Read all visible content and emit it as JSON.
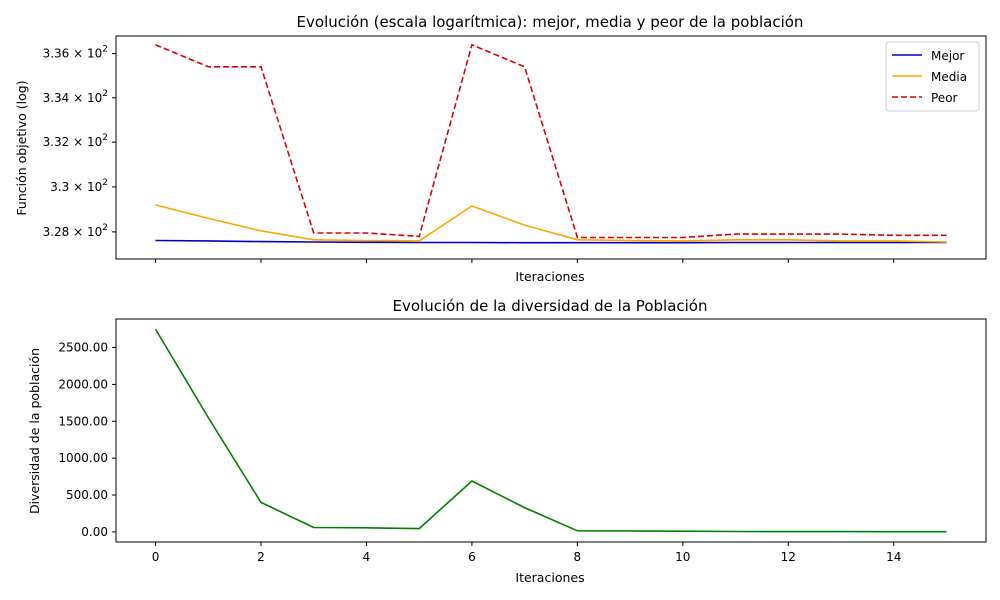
{
  "chart_data": [
    {
      "type": "line",
      "title": "Evolución (escala logarítmica): mejor, media y peor de la población",
      "xlabel": "Iteraciones",
      "ylabel": "Función objetivo (log)",
      "yscale": "log",
      "xlim": [
        -0.75,
        15.75
      ],
      "ylim": [
        326.8,
        336.8
      ],
      "x": [
        0,
        1,
        2,
        3,
        4,
        5,
        6,
        7,
        8,
        9,
        10,
        11,
        12,
        13,
        14,
        15
      ],
      "x_ticks": [
        0,
        2,
        4,
        6,
        8,
        10,
        12,
        14
      ],
      "y_ticks": [
        {
          "value": 328,
          "mantissa": "3.28",
          "base": "10",
          "exp": "2"
        },
        {
          "value": 330,
          "mantissa": "3.3",
          "base": "10",
          "exp": "2"
        },
        {
          "value": 332,
          "mantissa": "3.32",
          "base": "10",
          "exp": "2"
        },
        {
          "value": 334,
          "mantissa": "3.34",
          "base": "10",
          "exp": "2"
        },
        {
          "value": 336,
          "mantissa": "3.36",
          "base": "10",
          "exp": "2"
        }
      ],
      "times_symbol": "×",
      "grid": false,
      "legend": "top-right",
      "series": [
        {
          "name": "Mejor",
          "color": "#0000cc",
          "dash": "solid",
          "values": [
            327.62,
            327.6,
            327.57,
            327.55,
            327.54,
            327.53,
            327.53,
            327.52,
            327.52,
            327.52,
            327.52,
            327.53,
            327.53,
            327.53,
            327.53,
            327.53
          ]
        },
        {
          "name": "Media",
          "color": "#ffa500",
          "dash": "solid",
          "values": [
            329.2,
            328.6,
            328.05,
            327.65,
            327.62,
            327.6,
            329.15,
            328.3,
            327.65,
            327.62,
            327.6,
            327.65,
            327.65,
            327.6,
            327.6,
            327.55
          ]
        },
        {
          "name": "Peor",
          "color": "#dd0000",
          "dash": "dashed",
          "values": [
            336.4,
            335.4,
            335.4,
            327.95,
            327.95,
            327.8,
            336.4,
            335.4,
            327.75,
            327.75,
            327.75,
            327.9,
            327.9,
            327.9,
            327.85,
            327.85
          ]
        }
      ]
    },
    {
      "type": "line",
      "title": "Evolución de la diversidad de la Población",
      "xlabel": "Iteraciones",
      "ylabel": "Diversidad de la población",
      "xlim": [
        -0.75,
        15.75
      ],
      "ylim": [
        -137,
        2887
      ],
      "x": [
        0,
        1,
        2,
        3,
        4,
        5,
        6,
        7,
        8,
        9,
        10,
        11,
        12,
        13,
        14,
        15
      ],
      "x_ticks": [
        0,
        2,
        4,
        6,
        8,
        10,
        12,
        14
      ],
      "y_ticks": [
        0,
        500,
        1000,
        1500,
        2000,
        2500
      ],
      "y_tick_labels": [
        "0.00",
        "500.00",
        "1000.00",
        "1500.00",
        "2000.00",
        "2500.00"
      ],
      "grid": false,
      "series": [
        {
          "color": "#008000",
          "dash": "solid",
          "values": [
            2750,
            1550,
            400,
            60,
            55,
            45,
            690,
            330,
            15,
            12,
            10,
            5,
            4,
            4,
            3,
            2
          ]
        }
      ]
    }
  ]
}
